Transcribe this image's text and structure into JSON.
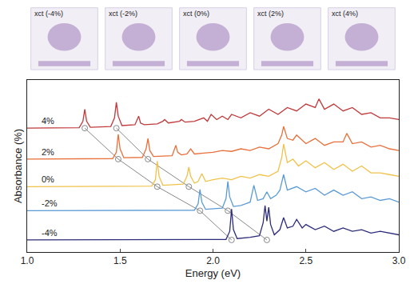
{
  "chart_data": {
    "type": "line",
    "xlabel": "Energy (eV)",
    "ylabel": "Absorbance (%)",
    "xlim": [
      1.0,
      3.0
    ],
    "xticks": [
      {
        "value": 1.0,
        "label": "1.0"
      },
      {
        "value": 1.5,
        "label": "1.5"
      },
      {
        "value": 2.0,
        "label": "2.0"
      },
      {
        "value": 2.5,
        "label": "2.5"
      },
      {
        "value": 3.0,
        "label": "3.0"
      }
    ],
    "ylim": [
      0,
      100
    ],
    "yticks": [],
    "tick_labels": "x",
    "grid": false,
    "panel_labels": [
      "xct (-4%)",
      "xct (-2%)",
      "xct (0%)",
      "xct (2%)",
      "xct (4%)"
    ],
    "series": [
      {
        "name": "4%",
        "color": "#c0393b",
        "x": [
          1.0,
          1.28,
          1.3,
          1.31,
          1.32,
          1.34,
          1.45,
          1.47,
          1.48,
          1.49,
          1.51,
          1.58,
          1.6,
          1.61,
          1.63,
          1.7,
          1.73,
          1.74,
          1.76,
          1.8,
          1.82,
          1.83,
          1.85,
          1.9,
          1.95,
          1.97,
          1.99,
          2.02,
          2.05,
          2.08,
          2.1,
          2.15,
          2.2,
          2.25,
          2.3,
          2.35,
          2.4,
          2.45,
          2.5,
          2.55,
          2.57,
          2.6,
          2.65,
          2.7,
          2.75,
          2.8,
          2.85,
          2.9,
          2.95,
          3.0
        ],
        "values": [
          72,
          72.3,
          76,
          83,
          76,
          72.5,
          73,
          78,
          87,
          79,
          73.5,
          74,
          79,
          75,
          74,
          74.5,
          76,
          77,
          75,
          75.5,
          76,
          77,
          75.5,
          76,
          78,
          76,
          80,
          77,
          79,
          77,
          80,
          78,
          81,
          79,
          83,
          80,
          84,
          82,
          86,
          84,
          89,
          83,
          86,
          82,
          84,
          80,
          81,
          78,
          78,
          77
        ]
      },
      {
        "name": "2%",
        "color": "#e8703a",
        "x": [
          1.0,
          1.46,
          1.48,
          1.49,
          1.5,
          1.52,
          1.62,
          1.64,
          1.65,
          1.66,
          1.68,
          1.78,
          1.8,
          1.81,
          1.83,
          1.86,
          1.88,
          1.9,
          1.95,
          2.0,
          2.05,
          2.1,
          2.15,
          2.2,
          2.25,
          2.3,
          2.35,
          2.37,
          2.38,
          2.4,
          2.43,
          2.45,
          2.5,
          2.55,
          2.6,
          2.65,
          2.7,
          2.72,
          2.75,
          2.8,
          2.85,
          2.9,
          2.95,
          3.0
        ],
        "values": [
          54,
          54.3,
          58,
          68.5,
          60,
          54.8,
          55,
          60,
          66,
          59,
          55.5,
          56,
          62,
          58,
          56.5,
          57,
          60,
          57,
          57.5,
          58,
          59,
          58.5,
          60,
          59,
          61,
          60,
          63,
          68,
          73,
          66,
          65,
          68,
          63,
          66,
          62,
          64,
          64,
          69,
          63,
          64,
          61,
          62,
          60,
          59
        ]
      },
      {
        "name": "0%",
        "color": "#f0c24a",
        "x": [
          1.0,
          1.67,
          1.69,
          1.7,
          1.71,
          1.73,
          1.84,
          1.86,
          1.87,
          1.88,
          1.9,
          1.92,
          1.94,
          1.96,
          2.0,
          2.05,
          2.1,
          2.15,
          2.2,
          2.25,
          2.3,
          2.35,
          2.37,
          2.38,
          2.4,
          2.43,
          2.46,
          2.5,
          2.55,
          2.6,
          2.65,
          2.7,
          2.75,
          2.8,
          2.85,
          2.9,
          2.95,
          3.0
        ],
        "values": [
          38,
          38.3,
          42,
          52.8,
          44,
          38.8,
          39.5,
          44,
          49.4,
          44,
          40,
          41,
          45.6,
          41,
          42,
          43,
          42,
          44,
          43,
          45,
          44,
          47,
          55,
          62.8,
          52,
          54,
          50,
          53,
          49,
          52,
          48,
          51,
          47,
          50,
          46,
          46,
          45,
          44
        ]
      },
      {
        "name": "-2%",
        "color": "#5b9bd5",
        "x": [
          1.0,
          1.9,
          1.92,
          1.93,
          1.94,
          1.96,
          2.05,
          2.07,
          2.08,
          2.09,
          2.11,
          2.15,
          2.2,
          2.22,
          2.24,
          2.27,
          2.29,
          2.31,
          2.34,
          2.36,
          2.38,
          2.4,
          2.45,
          2.5,
          2.55,
          2.6,
          2.65,
          2.7,
          2.75,
          2.8,
          2.85,
          2.9,
          2.95,
          3.0
        ],
        "values": [
          24,
          24.3,
          28,
          36.4,
          29,
          24.8,
          25.5,
          31,
          41,
          32,
          26.5,
          27,
          29,
          38.8,
          30,
          31,
          35,
          31,
          33,
          36,
          45,
          36,
          38,
          35,
          37,
          33,
          36,
          33,
          35,
          31,
          32,
          30,
          31,
          29
        ]
      },
      {
        "name": "-4%",
        "color": "#2c2c7a",
        "x": [
          1.0,
          2.07,
          2.09,
          2.1,
          2.11,
          2.13,
          2.2,
          2.25,
          2.27,
          2.28,
          2.29,
          2.3,
          2.31,
          2.33,
          2.36,
          2.38,
          2.4,
          2.43,
          2.45,
          2.48,
          2.5,
          2.55,
          2.6,
          2.65,
          2.7,
          2.75,
          2.8,
          2.85,
          2.9,
          2.95,
          3.0
        ],
        "values": [
          7,
          7.3,
          12,
          25,
          13,
          7.8,
          8.5,
          9.5,
          17,
          27,
          18,
          26,
          16,
          10,
          13,
          20,
          14,
          15,
          19,
          14,
          16,
          13,
          15,
          12,
          14,
          12,
          13,
          11,
          12,
          11,
          10
        ]
      }
    ],
    "guides": [
      {
        "color": "#888888",
        "marker": "circle",
        "x": [
          1.31,
          1.49,
          1.7,
          1.93,
          2.1
        ],
        "values": [
          72,
          54,
          38,
          24,
          7
        ]
      },
      {
        "color": "#888888",
        "marker": "circle",
        "x": [
          1.48,
          1.65,
          1.87,
          2.08,
          2.29
        ],
        "values": [
          72,
          54,
          38,
          24,
          7
        ]
      }
    ]
  }
}
